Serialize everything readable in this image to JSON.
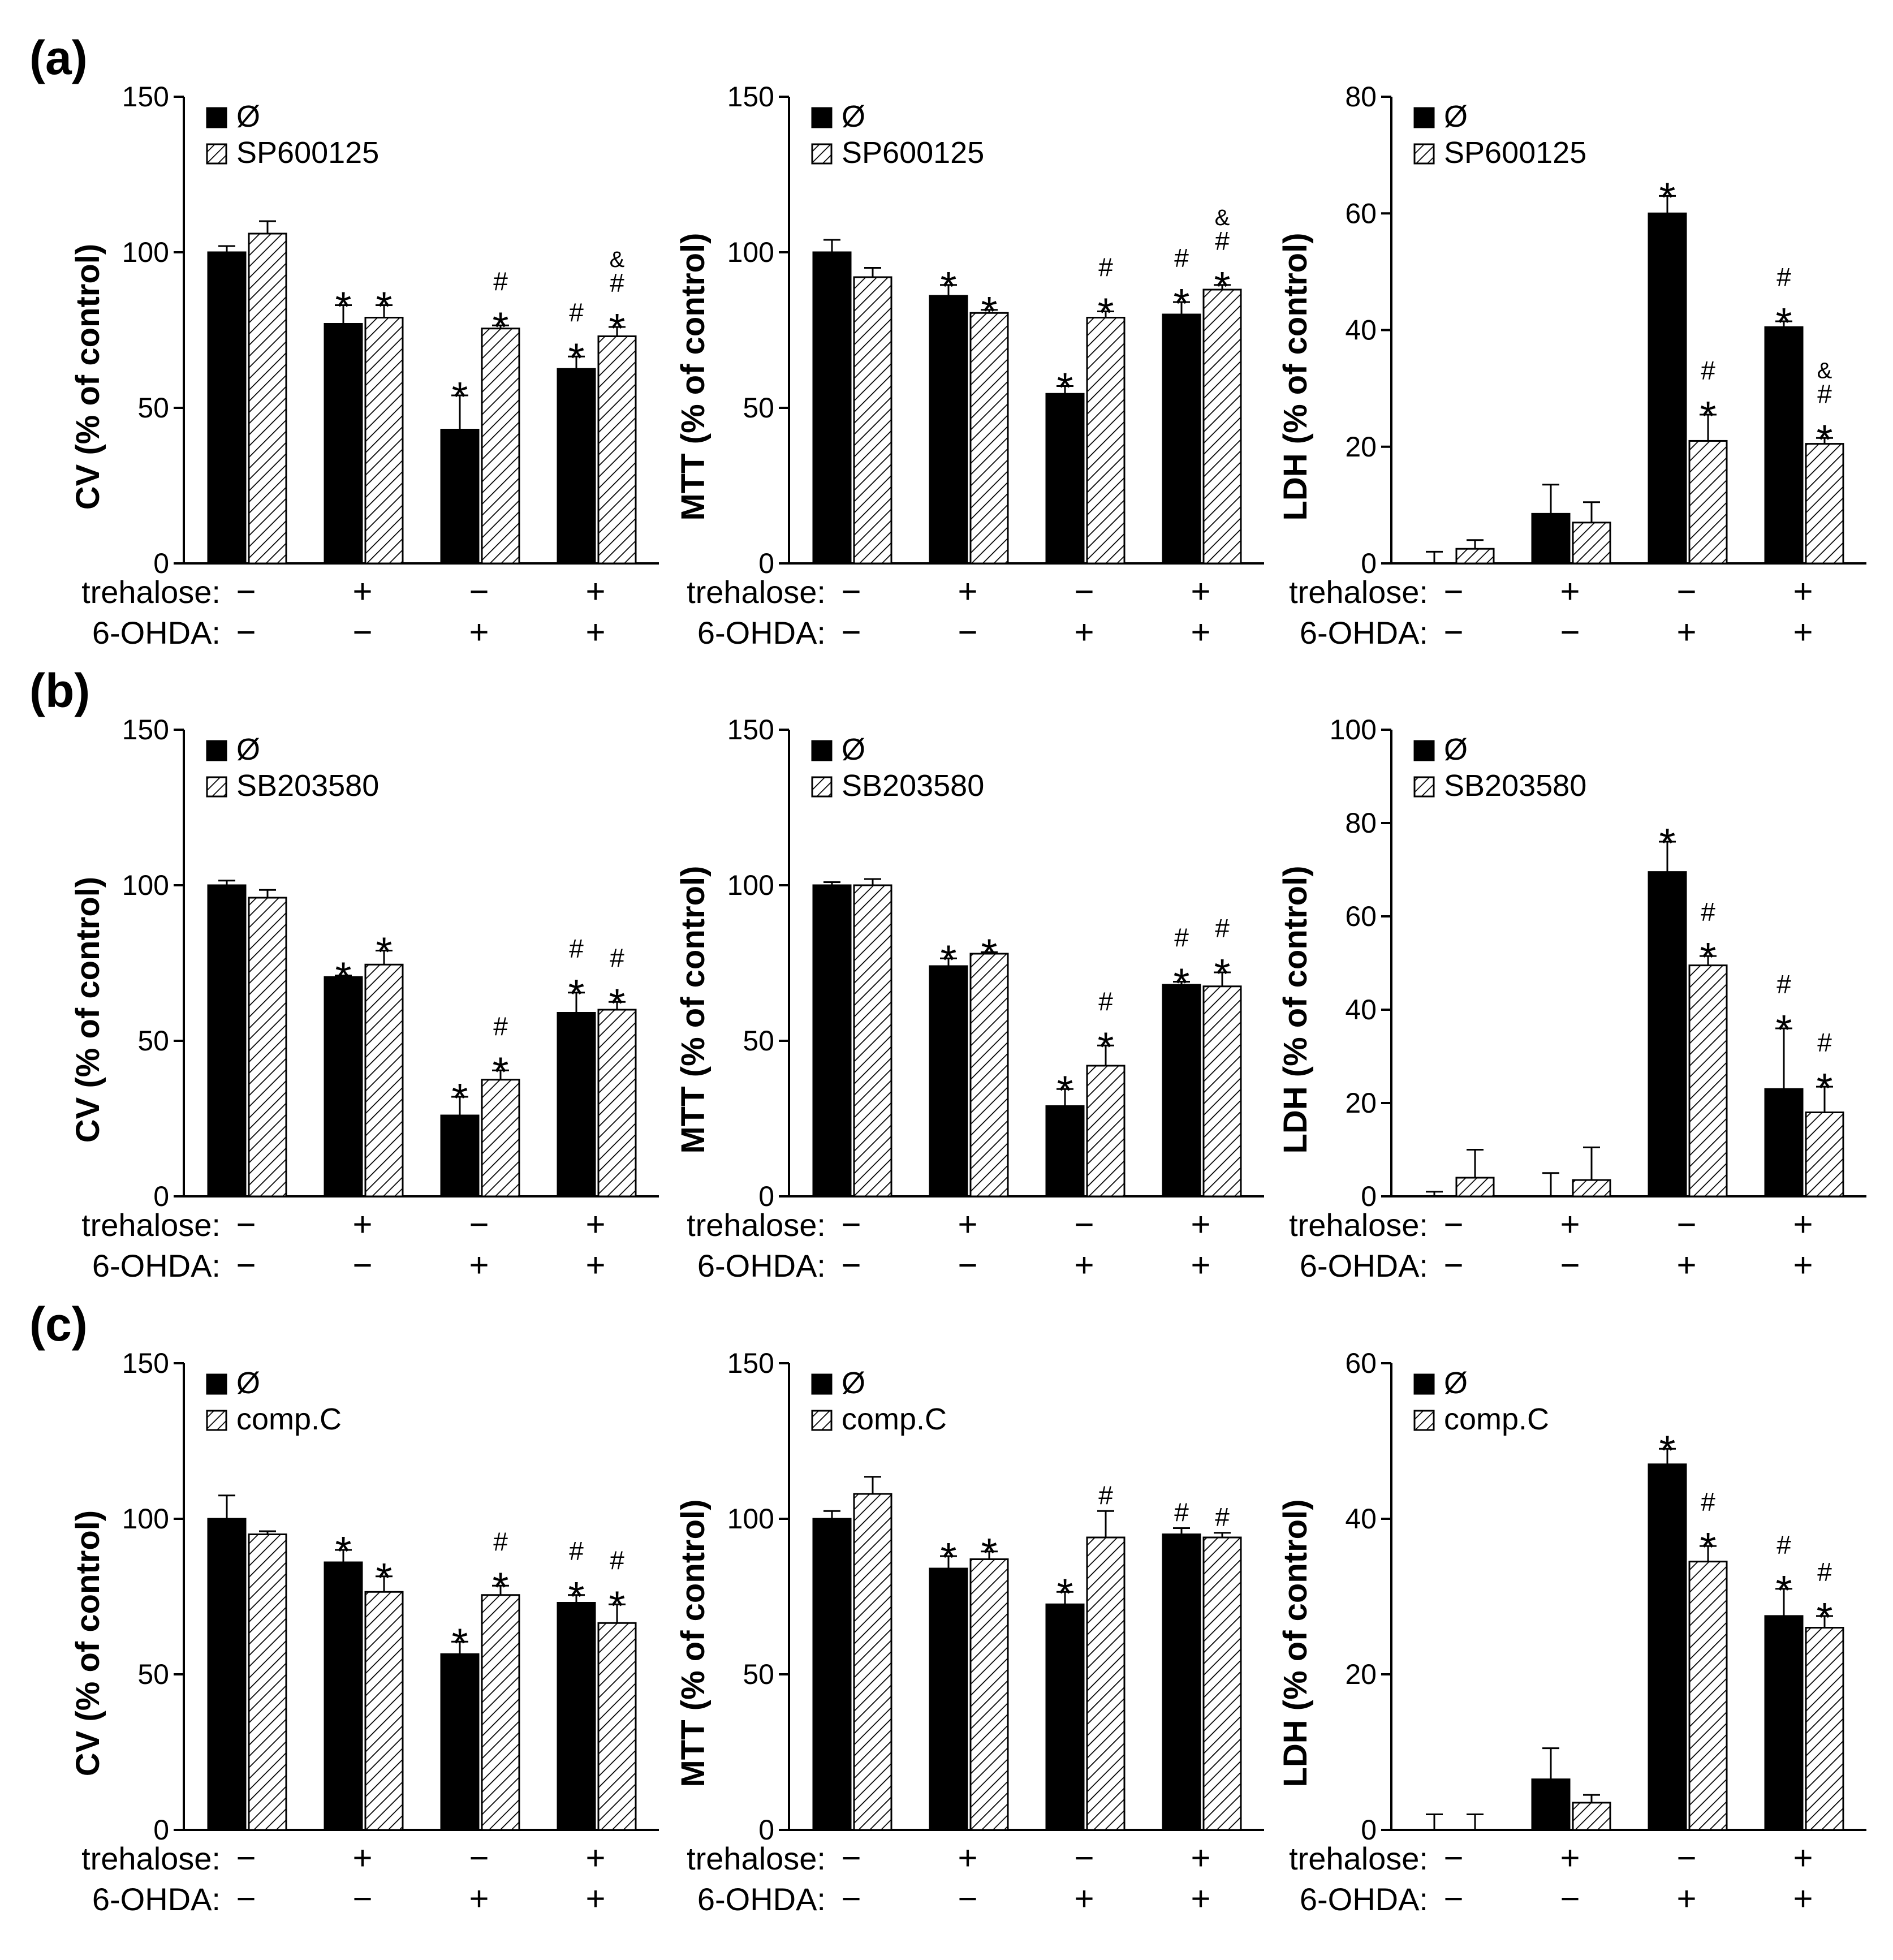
{
  "figure": {
    "condition_rows": {
      "trehalose": {
        "label": "trehalose:",
        "symbols": [
          "−",
          "+",
          "−",
          "+"
        ]
      },
      "ohda": {
        "label": "6-OHDA:",
        "symbols": [
          "−",
          "−",
          "+",
          "+"
        ]
      }
    },
    "colors": {
      "control": "#000000",
      "inhibitor_fill": "#ffffff",
      "hatch": "#000000"
    }
  },
  "chart_data": [
    {
      "type": "bar",
      "panel": "(a)",
      "ylabel": "CV (% of control)",
      "ylim": [
        0,
        150
      ],
      "yticks": [
        0,
        50,
        100,
        150
      ],
      "series": [
        {
          "name": "Ø",
          "style": "solid"
        },
        {
          "name": "SP600125",
          "style": "hatched"
        }
      ],
      "groups": [
        {
          "values": [
            100,
            106
          ],
          "errors": [
            2,
            4
          ],
          "marks": [
            [],
            []
          ]
        },
        {
          "values": [
            77,
            79
          ],
          "errors": [
            6,
            4
          ],
          "marks": [
            [
              "*"
            ],
            [
              "*"
            ]
          ]
        },
        {
          "values": [
            43,
            75.5
          ],
          "errors": [
            11,
            1
          ],
          "marks": [
            [
              "*"
            ],
            [
              "*",
              "#"
            ]
          ]
        },
        {
          "values": [
            62.5,
            73
          ],
          "errors": [
            4,
            3
          ],
          "marks": [
            [
              "*",
              "#"
            ],
            [
              "*",
              "#",
              "&"
            ]
          ]
        }
      ]
    },
    {
      "type": "bar",
      "panel": "",
      "ylabel": "MTT (% of control)",
      "ylim": [
        0,
        150
      ],
      "yticks": [
        0,
        50,
        100,
        150
      ],
      "series": [
        {
          "name": "Ø",
          "style": "solid"
        },
        {
          "name": "SP600125",
          "style": "hatched"
        }
      ],
      "groups": [
        {
          "values": [
            100,
            92
          ],
          "errors": [
            4,
            3
          ],
          "marks": [
            [],
            []
          ]
        },
        {
          "values": [
            86,
            80.5
          ],
          "errors": [
            3.5,
            1
          ],
          "marks": [
            [
              "*"
            ],
            [
              "*"
            ]
          ]
        },
        {
          "values": [
            54.5,
            79
          ],
          "errors": [
            2.5,
            2
          ],
          "marks": [
            [
              "*"
            ],
            [
              "*",
              "#"
            ]
          ]
        },
        {
          "values": [
            80,
            88
          ],
          "errors": [
            4,
            1.5
          ],
          "marks": [
            [
              "*",
              "#"
            ],
            [
              "*",
              "#",
              "&"
            ]
          ]
        }
      ]
    },
    {
      "type": "bar",
      "panel": "",
      "ylabel": "LDH (% of control)",
      "ylim": [
        0,
        80
      ],
      "yticks": [
        0,
        20,
        40,
        60,
        80
      ],
      "series": [
        {
          "name": "Ø",
          "style": "solid"
        },
        {
          "name": "SP600125",
          "style": "hatched"
        }
      ],
      "groups": [
        {
          "values": [
            0,
            2.5
          ],
          "errors": [
            2,
            1.5
          ],
          "marks": [
            [],
            []
          ]
        },
        {
          "values": [
            8.5,
            7
          ],
          "errors": [
            5,
            3.5
          ],
          "marks": [
            [],
            []
          ]
        },
        {
          "values": [
            60,
            21
          ],
          "errors": [
            3,
            4.5
          ],
          "marks": [
            [
              "*"
            ],
            [
              "*",
              "#"
            ]
          ]
        },
        {
          "values": [
            40.5,
            20.5
          ],
          "errors": [
            1,
            1
          ],
          "marks": [
            [
              "*",
              "#"
            ],
            [
              "*",
              "#",
              "&"
            ]
          ]
        }
      ]
    },
    {
      "type": "bar",
      "panel": "(b)",
      "ylabel": "CV (% of control)",
      "ylim": [
        0,
        150
      ],
      "yticks": [
        0,
        50,
        100,
        150
      ],
      "series": [
        {
          "name": "Ø",
          "style": "solid"
        },
        {
          "name": "SB203580",
          "style": "hatched"
        }
      ],
      "groups": [
        {
          "values": [
            100,
            96
          ],
          "errors": [
            1.5,
            2.5
          ],
          "marks": [
            [],
            []
          ]
        },
        {
          "values": [
            70.5,
            74.5
          ],
          "errors": [
            0.5,
            4.5
          ],
          "marks": [
            [
              "*"
            ],
            [
              "*"
            ]
          ]
        },
        {
          "values": [
            26,
            37.5
          ],
          "errors": [
            6,
            3
          ],
          "marks": [
            [
              "*"
            ],
            [
              "*",
              "#"
            ]
          ]
        },
        {
          "values": [
            59,
            60
          ],
          "errors": [
            6.5,
            2.5
          ],
          "marks": [
            [
              "*",
              "#"
            ],
            [
              "*",
              "#"
            ]
          ]
        }
      ]
    },
    {
      "type": "bar",
      "panel": "",
      "ylabel": "MTT (% of control)",
      "ylim": [
        0,
        150
      ],
      "yticks": [
        0,
        50,
        100,
        150
      ],
      "series": [
        {
          "name": "Ø",
          "style": "solid"
        },
        {
          "name": "SB203580",
          "style": "hatched"
        }
      ],
      "groups": [
        {
          "values": [
            100,
            100
          ],
          "errors": [
            1,
            2
          ],
          "marks": [
            [],
            []
          ]
        },
        {
          "values": [
            74,
            78
          ],
          "errors": [
            2.5,
            0.5
          ],
          "marks": [
            [
              "*"
            ],
            [
              "*"
            ]
          ]
        },
        {
          "values": [
            29,
            42
          ],
          "errors": [
            5.5,
            6.5
          ],
          "marks": [
            [
              "*"
            ],
            [
              "*",
              "#"
            ]
          ]
        },
        {
          "values": [
            68,
            67.5
          ],
          "errors": [
            1,
            4.5
          ],
          "marks": [
            [
              "*",
              "#"
            ],
            [
              "*",
              "#"
            ]
          ]
        }
      ]
    },
    {
      "type": "bar",
      "panel": "",
      "ylabel": "LDH (% of control)",
      "ylim": [
        0,
        100
      ],
      "yticks": [
        0,
        20,
        40,
        60,
        80,
        100
      ],
      "series": [
        {
          "name": "Ø",
          "style": "solid"
        },
        {
          "name": "SB203580",
          "style": "hatched"
        }
      ],
      "groups": [
        {
          "values": [
            0,
            4
          ],
          "errors": [
            1,
            6
          ],
          "marks": [
            [],
            []
          ]
        },
        {
          "values": [
            0,
            3.5
          ],
          "errors": [
            5,
            7
          ],
          "marks": [
            [],
            []
          ]
        },
        {
          "values": [
            69.5,
            49.5
          ],
          "errors": [
            6.5,
            2
          ],
          "marks": [
            [
              "*"
            ],
            [
              "*",
              "#"
            ]
          ]
        },
        {
          "values": [
            23,
            18
          ],
          "errors": [
            13,
            5.5
          ],
          "marks": [
            [
              "*",
              "#"
            ],
            [
              "*",
              "#"
            ]
          ]
        }
      ]
    },
    {
      "type": "bar",
      "panel": "(c)",
      "ylabel": "CV (% of control)",
      "ylim": [
        0,
        150
      ],
      "yticks": [
        0,
        50,
        100,
        150
      ],
      "series": [
        {
          "name": "Ø",
          "style": "solid"
        },
        {
          "name": "comp.C",
          "style": "hatched"
        }
      ],
      "groups": [
        {
          "values": [
            100,
            95
          ],
          "errors": [
            7.5,
            1
          ],
          "marks": [
            [],
            []
          ]
        },
        {
          "values": [
            86,
            76.5
          ],
          "errors": [
            4,
            5
          ],
          "marks": [
            [
              "*"
            ],
            [
              "*"
            ]
          ]
        },
        {
          "values": [
            56.5,
            75.5
          ],
          "errors": [
            4,
            3
          ],
          "marks": [
            [
              "*"
            ],
            [
              "*",
              "#"
            ]
          ]
        },
        {
          "values": [
            73,
            66.5
          ],
          "errors": [
            2.5,
            6
          ],
          "marks": [
            [
              "*",
              "#"
            ],
            [
              "*",
              "#"
            ]
          ]
        }
      ]
    },
    {
      "type": "bar",
      "panel": "",
      "ylabel": "MTT (% of control)",
      "ylim": [
        0,
        150
      ],
      "yticks": [
        0,
        50,
        100,
        150
      ],
      "series": [
        {
          "name": "Ø",
          "style": "solid"
        },
        {
          "name": "comp.C",
          "style": "hatched"
        }
      ],
      "groups": [
        {
          "values": [
            100,
            108
          ],
          "errors": [
            2.5,
            5.5
          ],
          "marks": [
            [],
            []
          ]
        },
        {
          "values": [
            84,
            87
          ],
          "errors": [
            4,
            2.5
          ],
          "marks": [
            [
              "*"
            ],
            [
              "*"
            ]
          ]
        },
        {
          "values": [
            72.5,
            94
          ],
          "errors": [
            4,
            8.5
          ],
          "marks": [
            [
              "*"
            ],
            [
              "#"
            ]
          ]
        },
        {
          "values": [
            95,
            94
          ],
          "errors": [
            2,
            1.5
          ],
          "marks": [
            [
              "#"
            ],
            [
              "#"
            ]
          ]
        }
      ]
    },
    {
      "type": "bar",
      "panel": "",
      "ylabel": "LDH (% of control)",
      "ylim": [
        0,
        60
      ],
      "yticks": [
        0,
        20,
        40,
        60
      ],
      "series": [
        {
          "name": "Ø",
          "style": "solid"
        },
        {
          "name": "comp.C",
          "style": "hatched"
        }
      ],
      "groups": [
        {
          "values": [
            0,
            0
          ],
          "errors": [
            2,
            2
          ],
          "marks": [
            [],
            []
          ]
        },
        {
          "values": [
            6.5,
            3.5
          ],
          "errors": [
            4,
            1
          ],
          "marks": [
            [],
            []
          ]
        },
        {
          "values": [
            47,
            34.5
          ],
          "errors": [
            2,
            2
          ],
          "marks": [
            [
              "*"
            ],
            [
              "*",
              "#"
            ]
          ]
        },
        {
          "values": [
            27.5,
            26
          ],
          "errors": [
            3.5,
            1.5
          ],
          "marks": [
            [
              "*",
              "#"
            ],
            [
              "*",
              "#"
            ]
          ]
        }
      ]
    }
  ]
}
